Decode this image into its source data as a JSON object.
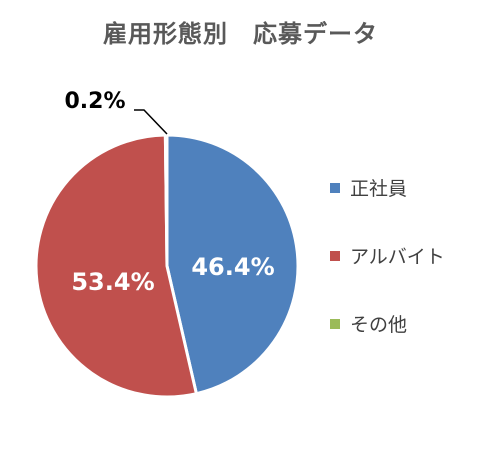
{
  "chart_data": {
    "type": "pie",
    "title": "雇用形態別　応募データ",
    "categories": [
      "正社員",
      "アルバイト",
      "その他"
    ],
    "values": [
      46.4,
      53.4,
      0.2
    ],
    "data_labels": [
      "46.4%",
      "53.4%",
      "0.2%"
    ],
    "colors": [
      "#4F81BD",
      "#C0504D",
      "#9BBB59"
    ],
    "legend_position": "right"
  }
}
